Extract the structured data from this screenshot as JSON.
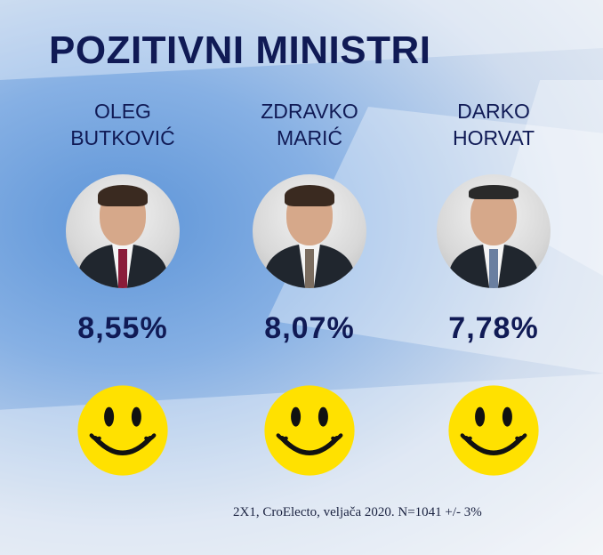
{
  "title": "POZITIVNI MINISTRI",
  "ministers": [
    {
      "name_line1": "OLEG",
      "name_line2": "BUTKOVIĆ",
      "percent": "8,55%",
      "tie_color": "#8a1c3a",
      "face_icon": "smiley-face-icon"
    },
    {
      "name_line1": "ZDRAVKO",
      "name_line2": "MARIĆ",
      "percent": "8,07%",
      "tie_color": "#7b6d60",
      "face_icon": "smiley-face-icon"
    },
    {
      "name_line1": "DARKO",
      "name_line2": "HORVAT",
      "percent": "7,78%",
      "tie_color": "#6a7fa0",
      "face_icon": "smiley-face-icon"
    }
  ],
  "footer": "2X1, CroElecto, veljača 2020. N=1041 +/- 3%",
  "colors": {
    "text": "#101a55",
    "smiley": "#ffe100"
  }
}
